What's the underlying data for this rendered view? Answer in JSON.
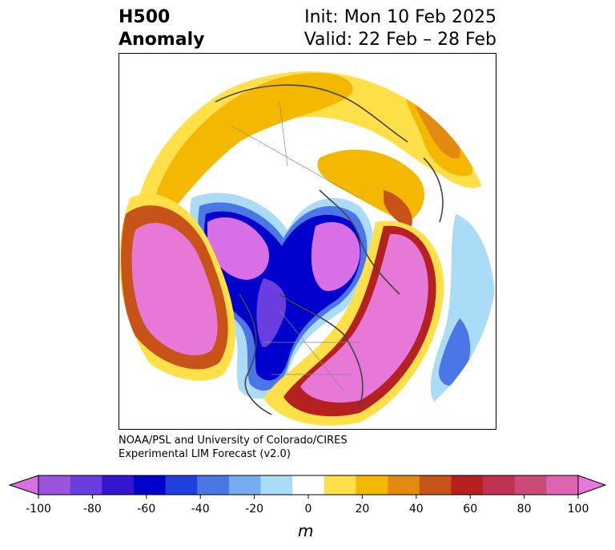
{
  "header": {
    "variable": "H500",
    "subtitle": "Anomaly",
    "init": "Init: Mon 10 Feb 2025",
    "valid": "Valid: 22 Feb – 28 Feb"
  },
  "credit": {
    "line1": "NOAA/PSL and University of Colorado/CIRES",
    "line2": "Experimental LIM Forecast (v2.0)"
  },
  "colorbar": {
    "unit": "m",
    "levels": [
      -100,
      -90,
      -80,
      -70,
      -60,
      -50,
      -40,
      -30,
      -20,
      -10,
      10,
      20,
      30,
      40,
      50,
      60,
      70,
      80,
      90,
      100
    ],
    "colors": [
      "#d86fe6",
      "#9b55dd",
      "#6a3de0",
      "#3515d0",
      "#0000cc",
      "#2040dd",
      "#4a76e6",
      "#74aef0",
      "#aadcf8",
      "#ffffff",
      "#ffe048",
      "#f5b800",
      "#e38a10",
      "#c85318",
      "#b52020",
      "#c03050",
      "#cc4a78",
      "#dd64b0",
      "#e878d8"
    ],
    "ticks": [
      "-100",
      "-80",
      "-60",
      "-40",
      "-20",
      "0",
      "20",
      "40",
      "60",
      "80",
      "100"
    ]
  },
  "map": {
    "projection": "north-polar-stereographic",
    "field": "500 hPa geopotential height anomaly"
  }
}
